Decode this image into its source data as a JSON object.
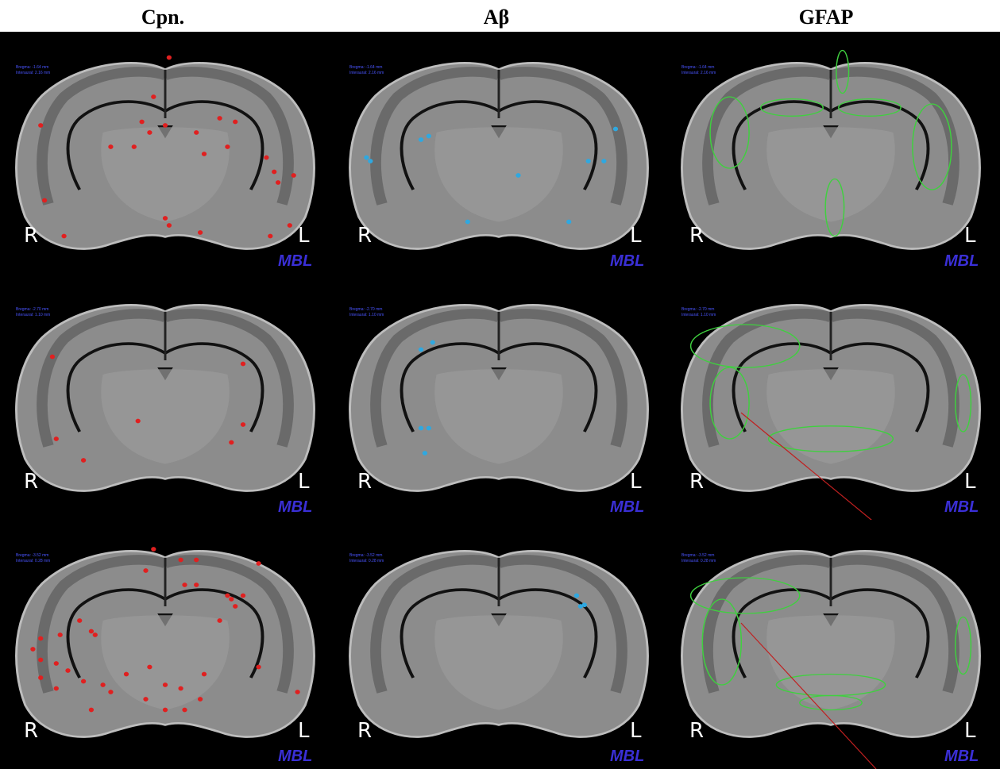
{
  "headers": [
    "Cpn.",
    "Aβ",
    "GFAP"
  ],
  "rows": [
    {
      "bregma": "Bregma: -1.64 mm",
      "interaural": "Interaural: 2.16 mm",
      "panels": [
        {
          "right_side": "R",
          "left_side": "L",
          "logo": "MBL"
        },
        {
          "right_side": "R",
          "left_side": "L",
          "logo": "MBL"
        },
        {
          "right_side": "R",
          "left_side": "L",
          "logo": "MBL"
        }
      ]
    },
    {
      "bregma": "Bregma: -2.70 mm",
      "interaural": "Interaural: 1.10 mm",
      "panels": [
        {
          "right_side": "R",
          "left_side": "L",
          "logo": "MBL"
        },
        {
          "right_side": "R",
          "left_side": "L",
          "logo": "MBL"
        },
        {
          "right_side": "R",
          "left_side": "L",
          "logo": "MBL"
        }
      ]
    },
    {
      "bregma": "Bregma: -3.52 mm",
      "interaural": "Interaural: 0.28 mm",
      "panels": [
        {
          "right_side": "R",
          "left_side": "L",
          "logo": "MBL"
        },
        {
          "right_side": "R",
          "left_side": "L",
          "logo": "MBL"
        },
        {
          "right_side": "R",
          "left_side": "L",
          "logo": "MBL"
        }
      ]
    }
  ]
}
